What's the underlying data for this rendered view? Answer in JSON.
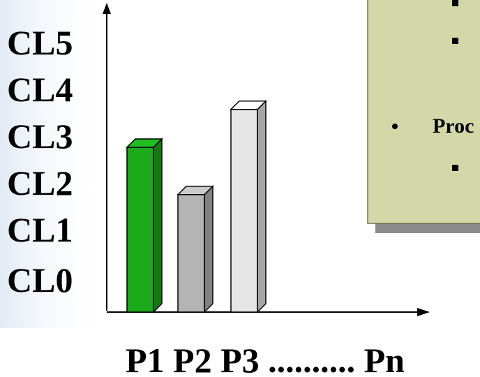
{
  "chart_data": {
    "type": "bar",
    "title": "",
    "xlabel": "",
    "ylabel": "",
    "y_tick_labels": [
      "CL0",
      "CL1",
      "CL2",
      "CL3",
      "CL4",
      "CL5"
    ],
    "ylim": [
      0,
      5
    ],
    "categories": [
      "P1",
      "P2",
      "P3"
    ],
    "values": [
      2.7,
      1.7,
      3.5
    ],
    "bar_colors": [
      "#1aaa1a",
      "#b4b4b4",
      "#e6e6e6"
    ],
    "x_axis_caption": "P1 P2 P3 .......... Pn",
    "grid": false,
    "legend": "none"
  },
  "notes_panel": {
    "bullet_label": "Proc",
    "panel_color": "#d4d8a8"
  }
}
